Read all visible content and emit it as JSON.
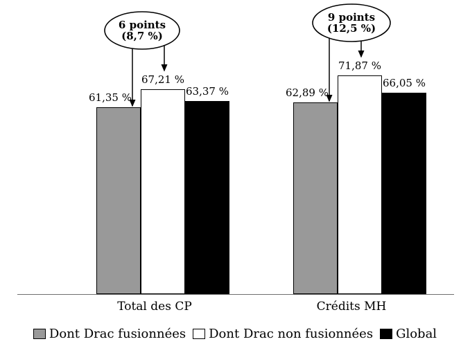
{
  "chart_data": {
    "type": "bar",
    "title": "",
    "xlabel": "",
    "ylabel": "",
    "grid": false,
    "legend_position": "bottom",
    "categories": [
      "Total des CP",
      "Crédits MH"
    ],
    "series": [
      {
        "name": "Dont Drac fusionnées",
        "color": "#999999",
        "values": [
          61.35,
          62.89
        ],
        "value_labels": [
          "61,35 %",
          "62,89 %"
        ]
      },
      {
        "name": "Dont Drac non fusionnées",
        "color": "#ffffff",
        "values": [
          67.21,
          71.87
        ],
        "value_labels": [
          "67,21 %",
          "71,87 %"
        ]
      },
      {
        "name": "Global",
        "color": "#000000",
        "values": [
          63.37,
          66.05
        ],
        "value_labels": [
          "63,37 %",
          "66,05 %"
        ]
      }
    ],
    "annotations": [
      {
        "lines": [
          "6 points",
          "(8,7 %)"
        ],
        "category_index": 0,
        "target_series": [
          0,
          1
        ]
      },
      {
        "lines": [
          "9 points",
          "(12,5 %)"
        ],
        "category_index": 1,
        "target_series": [
          0,
          1
        ]
      }
    ]
  }
}
